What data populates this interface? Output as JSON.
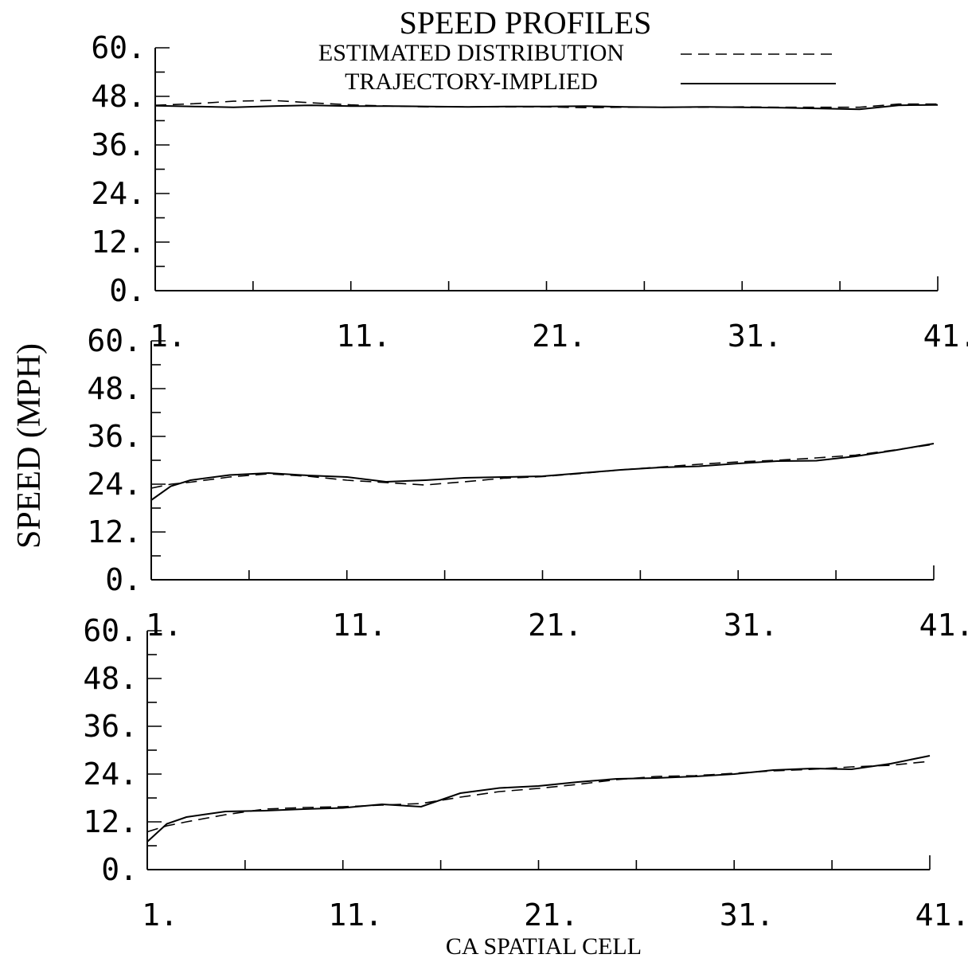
{
  "chart_data": {
    "type": "line",
    "title": "SPEED PROFILES",
    "ylabel": "SPEED (MPH)",
    "xlabel": "CA SPATIAL CELL",
    "legend": {
      "placement": "top",
      "entries": [
        {
          "label": "ESTIMATED DISTRIBUTION",
          "style": "dashed"
        },
        {
          "label": "TRAJECTORY-IMPLIED",
          "style": "solid"
        }
      ]
    },
    "x_ticks": [
      "1.",
      "11.",
      "21.",
      "31.",
      "41."
    ],
    "y_ticks": [
      "0.",
      "12.",
      "24.",
      "36.",
      "48.",
      "60."
    ],
    "xlim": [
      1,
      41
    ],
    "ylim": [
      0,
      60
    ],
    "panels": [
      {
        "series": [
          {
            "name": "ESTIMATED DISTRIBUTION",
            "style": "dashed",
            "x": [
              1,
              3,
              5,
              7,
              9,
              11,
              13,
              15,
              17,
              19,
              21,
              23,
              25,
              27,
              29,
              31,
              33,
              35,
              37,
              39,
              41
            ],
            "y": [
              45.8,
              46.2,
              46.8,
              47.0,
              46.4,
              45.9,
              45.6,
              45.4,
              45.4,
              45.4,
              45.4,
              45.2,
              45.3,
              45.3,
              45.3,
              45.4,
              45.3,
              45.3,
              45.3,
              46.1,
              46.1
            ]
          },
          {
            "name": "TRAJECTORY-IMPLIED",
            "style": "solid",
            "x": [
              1,
              3,
              5,
              7,
              9,
              11,
              13,
              15,
              17,
              19,
              21,
              23,
              25,
              27,
              29,
              31,
              33,
              35,
              37,
              39,
              41
            ],
            "y": [
              45.7,
              45.5,
              45.3,
              45.6,
              45.8,
              45.6,
              45.6,
              45.5,
              45.4,
              45.5,
              45.5,
              45.6,
              45.4,
              45.3,
              45.4,
              45.3,
              45.2,
              45.0,
              44.8,
              45.8,
              45.9
            ]
          }
        ]
      },
      {
        "series": [
          {
            "name": "ESTIMATED DISTRIBUTION",
            "style": "dashed",
            "x": [
              1,
              2,
              3,
              5,
              7,
              9,
              11,
              13,
              15,
              17,
              19,
              21,
              23,
              25,
              27,
              29,
              31,
              33,
              35,
              37,
              39,
              41
            ],
            "y": [
              23.0,
              24.0,
              24.5,
              25.8,
              26.6,
              26.0,
              25.0,
              24.4,
              23.8,
              24.6,
              25.5,
              25.9,
              26.7,
              27.6,
              28.3,
              29.0,
              29.6,
              30.0,
              30.6,
              31.3,
              32.6,
              34.0
            ]
          },
          {
            "name": "TRAJECTORY-IMPLIED",
            "style": "solid",
            "x": [
              1,
              2,
              3,
              5,
              7,
              9,
              11,
              13,
              15,
              17,
              19,
              21,
              23,
              25,
              27,
              29,
              31,
              33,
              35,
              37,
              39,
              41
            ],
            "y": [
              20.0,
              23.5,
              25.0,
              26.3,
              26.8,
              26.2,
              25.8,
              24.6,
              25.0,
              25.6,
              25.8,
              26.0,
              26.8,
              27.6,
              28.2,
              28.5,
              29.2,
              29.8,
              29.9,
              31.0,
              32.5,
              34.2
            ]
          }
        ]
      },
      {
        "series": [
          {
            "name": "ESTIMATED DISTRIBUTION",
            "style": "dashed",
            "x": [
              1,
              2,
              3,
              5,
              7,
              9,
              11,
              13,
              15,
              17,
              19,
              21,
              23,
              25,
              27,
              29,
              31,
              33,
              35,
              37,
              39,
              41
            ],
            "y": [
              9.5,
              11.0,
              12.0,
              13.8,
              15.2,
              15.6,
              15.8,
              16.2,
              16.6,
              18.2,
              19.6,
              20.4,
              21.4,
              22.6,
              23.4,
              23.6,
              24.2,
              24.8,
              25.2,
              25.8,
              26.2,
              27.2
            ]
          },
          {
            "name": "TRAJECTORY-IMPLIED",
            "style": "solid",
            "x": [
              1,
              2,
              3,
              5,
              7,
              9,
              11,
              13,
              15,
              17,
              19,
              21,
              23,
              25,
              27,
              29,
              31,
              33,
              35,
              37,
              39,
              41
            ],
            "y": [
              7.0,
              11.5,
              13.2,
              14.6,
              14.8,
              15.2,
              15.5,
              16.4,
              15.8,
              19.2,
              20.5,
              21.0,
              22.0,
              22.8,
              23.0,
              23.4,
              24.0,
              25.0,
              25.4,
              25.2,
              26.6,
              28.6
            ]
          }
        ]
      }
    ]
  }
}
